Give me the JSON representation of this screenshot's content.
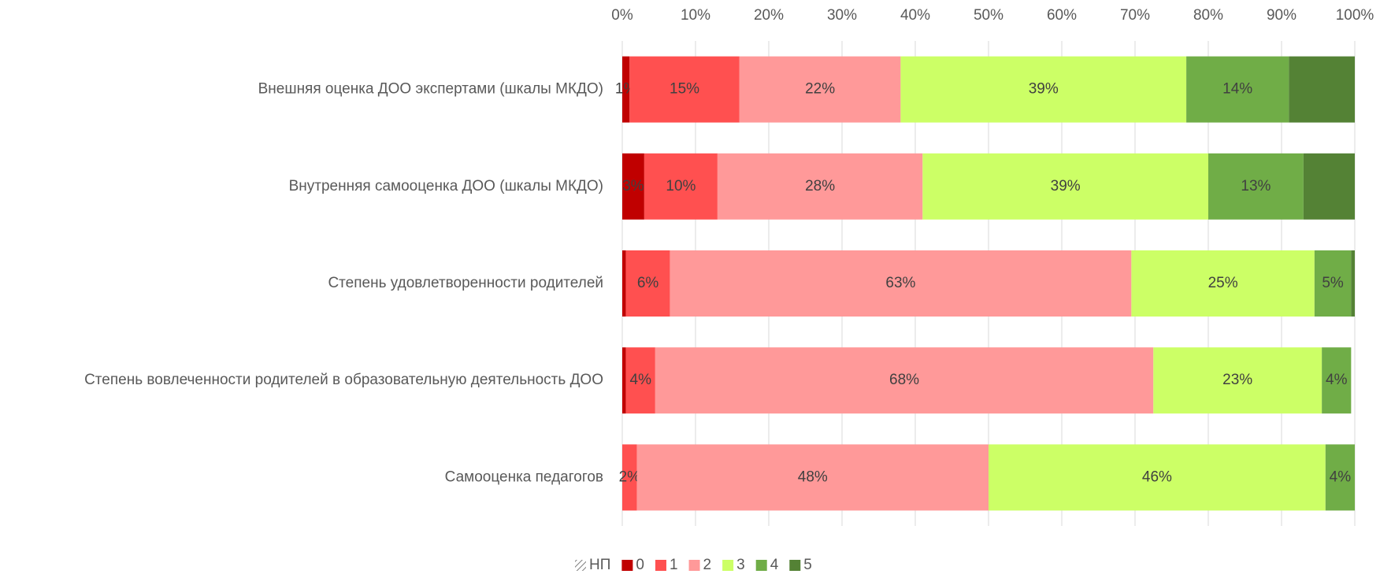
{
  "chart_data": {
    "type": "stacked_barh",
    "categories": [
      "Внешняя оценка ДОО экспертами (шкалы МКДО)",
      "Внутренняя самооценка ДОО (шкалы МКДО)",
      "Степень удовлетворенности родителей",
      "Степень вовлеченности родителей в образовательную деятельность ДОО",
      "Самооценка педагогов"
    ],
    "series": [
      {
        "name": "НП",
        "color": "#7f7f7f",
        "hatch": true,
        "values": [
          0,
          0,
          0,
          0,
          0
        ],
        "value_labels": [
          null,
          null,
          null,
          null,
          null
        ]
      },
      {
        "name": "0",
        "color": "#c00000",
        "values": [
          1,
          3,
          0.5,
          0.5,
          0
        ],
        "value_labels": [
          "1%",
          "3%",
          null,
          null,
          null
        ]
      },
      {
        "name": "1",
        "color": "#ff5050",
        "values": [
          15,
          10,
          6,
          4,
          2
        ],
        "value_labels": [
          "15%",
          "10%",
          "6%",
          "4%",
          "2%"
        ]
      },
      {
        "name": "2",
        "color": "#ff9999",
        "values": [
          22,
          28,
          63,
          68,
          48
        ],
        "value_labels": [
          "22%",
          "28%",
          "63%",
          "68%",
          "48%"
        ]
      },
      {
        "name": "3",
        "color": "#ccff66",
        "values": [
          39,
          39,
          25,
          23,
          46
        ],
        "value_labels": [
          "39%",
          "39%",
          "25%",
          "23%",
          "46%"
        ]
      },
      {
        "name": "4",
        "color": "#70ad47",
        "values": [
          14,
          13,
          5,
          4,
          4
        ],
        "value_labels": [
          "14%",
          "13%",
          "5%",
          "4%",
          "4%"
        ]
      },
      {
        "name": "5",
        "color": "#548235",
        "values": [
          9,
          7,
          0.5,
          0,
          0
        ],
        "value_labels": [
          null,
          null,
          null,
          null,
          null
        ]
      }
    ],
    "xlim": [
      0,
      100
    ],
    "xticks": [
      {
        "value": 0,
        "label": "0%"
      },
      {
        "value": 10,
        "label": "10%"
      },
      {
        "value": 20,
        "label": "20%"
      },
      {
        "value": 30,
        "label": "30%"
      },
      {
        "value": 40,
        "label": "40%"
      },
      {
        "value": 50,
        "label": "50%"
      },
      {
        "value": 60,
        "label": "60%"
      },
      {
        "value": 70,
        "label": "70%"
      },
      {
        "value": 80,
        "label": "80%"
      },
      {
        "value": 90,
        "label": "90%"
      },
      {
        "value": 100,
        "label": "100%"
      }
    ],
    "grid": true,
    "legend": "bottom"
  }
}
